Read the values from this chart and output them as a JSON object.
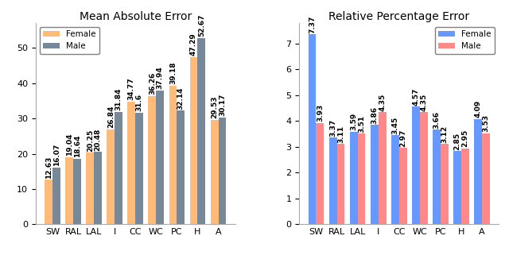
{
  "categories": [
    "SW",
    "RAL",
    "LAL",
    "I",
    "CC",
    "WC",
    "PC",
    "H",
    "A"
  ],
  "mae_female": [
    12.63,
    19.04,
    20.25,
    26.84,
    34.77,
    36.26,
    39.18,
    47.29,
    29.53
  ],
  "mae_male": [
    16.07,
    18.64,
    20.48,
    31.84,
    31.6,
    37.94,
    32.14,
    52.67,
    30.17
  ],
  "rpe_female": [
    7.37,
    3.37,
    3.59,
    3.86,
    3.45,
    4.57,
    3.66,
    2.85,
    4.09
  ],
  "rpe_male": [
    3.93,
    3.11,
    3.51,
    4.35,
    2.97,
    4.35,
    3.12,
    2.95,
    3.53
  ],
  "mae_title": "Mean Absolute Error",
  "rpe_title": "Relative Percentage Error",
  "mae_female_color": "#FFBB77",
  "mae_male_color": "#778899",
  "rpe_female_color": "#6699FF",
  "rpe_male_color": "#FF8888",
  "legend1_labels": [
    "Female",
    "Male"
  ],
  "legend2_labels": [
    "Female",
    "Male"
  ],
  "mae_ylim": [
    0,
    57
  ],
  "rpe_ylim": [
    0,
    7.8
  ],
  "mae_yticks": [
    0,
    10,
    20,
    30,
    40,
    50
  ],
  "rpe_yticks": [
    0,
    1,
    2,
    3,
    4,
    5,
    6,
    7
  ],
  "label_fontsize": 6.5,
  "title_fontsize": 10,
  "tick_fontsize": 8
}
